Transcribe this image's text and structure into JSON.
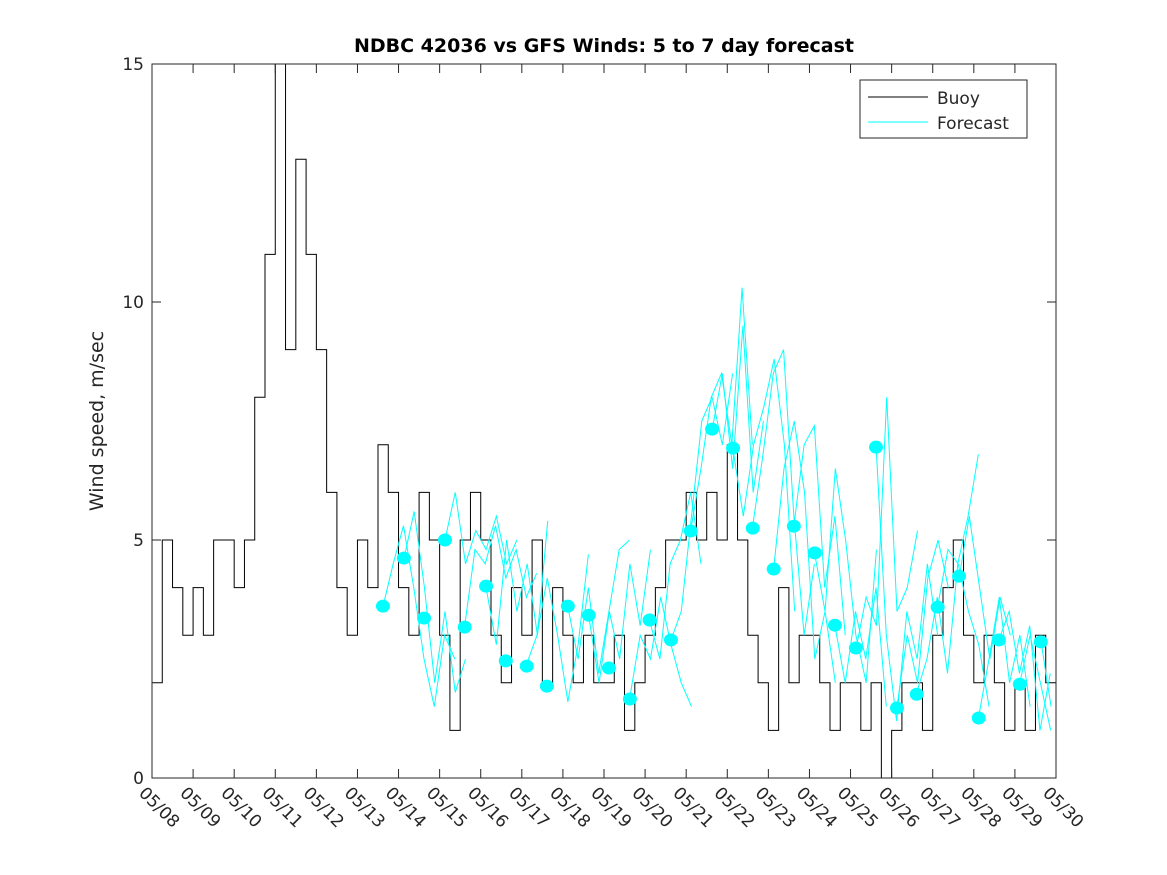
{
  "chart_data": {
    "type": "line",
    "title": "NDBC 42036 vs GFS Winds: 5 to 7 day forecast",
    "xlabel": "",
    "ylabel": "Wind speed, m/sec",
    "xlim_days": [
      0,
      22
    ],
    "ylim": [
      0,
      15
    ],
    "yticks": [
      0,
      5,
      10,
      15
    ],
    "xtick_labels": [
      "05/08",
      "05/09",
      "05/10",
      "05/11",
      "05/12",
      "05/13",
      "05/14",
      "05/15",
      "05/16",
      "05/17",
      "05/18",
      "05/19",
      "05/20",
      "05/21",
      "05/22",
      "05/23",
      "05/24",
      "05/25",
      "05/26",
      "05/27",
      "05/28",
      "05/29",
      "05/30"
    ],
    "legend": {
      "placement": "top-right",
      "entries": [
        {
          "label": "Buoy",
          "color": "#000000"
        },
        {
          "label": "Forecast",
          "color": "#00ffff"
        }
      ]
    },
    "colors": {
      "buoy": "#000000",
      "forecast": "#00ffff"
    },
    "buoy": {
      "step_days": 0.25,
      "values": [
        2,
        5,
        4,
        3,
        4,
        3,
        5,
        5,
        4,
        5,
        8,
        11,
        15,
        9,
        13,
        11,
        9,
        6,
        4,
        3,
        5,
        4,
        7,
        6,
        4,
        3,
        6,
        5,
        3,
        1,
        5,
        6,
        5,
        3,
        2,
        4,
        3,
        5,
        2,
        4,
        3,
        2,
        3,
        2,
        2,
        3,
        1,
        2,
        3,
        4,
        5,
        5,
        6,
        5,
        6,
        5,
        7,
        5,
        3,
        2,
        1,
        4,
        2,
        3,
        3,
        2,
        1,
        2,
        2,
        1,
        2,
        0,
        1,
        2,
        2,
        1,
        3,
        4,
        5,
        3,
        2,
        3,
        2,
        1,
        2,
        1,
        3,
        2
      ]
    },
    "forecast_points": [
      {
        "day": 5.62,
        "value": 3.61
      },
      {
        "day": 6.13,
        "value": 4.62
      },
      {
        "day": 6.62,
        "value": 3.36
      },
      {
        "day": 7.13,
        "value": 5.0
      },
      {
        "day": 7.61,
        "value": 3.17
      },
      {
        "day": 8.13,
        "value": 4.03
      },
      {
        "day": 8.61,
        "value": 2.46
      },
      {
        "day": 9.12,
        "value": 2.35
      },
      {
        "day": 9.61,
        "value": 1.93
      },
      {
        "day": 10.12,
        "value": 3.61
      },
      {
        "day": 10.63,
        "value": 3.42
      },
      {
        "day": 11.12,
        "value": 2.31
      },
      {
        "day": 11.63,
        "value": 1.66
      },
      {
        "day": 12.11,
        "value": 3.32
      },
      {
        "day": 12.63,
        "value": 2.9
      },
      {
        "day": 13.11,
        "value": 5.19
      },
      {
        "day": 13.63,
        "value": 7.33
      },
      {
        "day": 14.14,
        "value": 6.93
      },
      {
        "day": 14.62,
        "value": 5.25
      },
      {
        "day": 15.13,
        "value": 4.39
      },
      {
        "day": 15.62,
        "value": 5.29
      },
      {
        "day": 16.13,
        "value": 4.73
      },
      {
        "day": 16.62,
        "value": 3.21
      },
      {
        "day": 17.13,
        "value": 2.73
      },
      {
        "day": 17.62,
        "value": 6.95
      },
      {
        "day": 18.13,
        "value": 1.47
      },
      {
        "day": 18.61,
        "value": 1.76
      },
      {
        "day": 19.12,
        "value": 3.59
      },
      {
        "day": 19.64,
        "value": 4.24
      },
      {
        "day": 20.12,
        "value": 1.26
      },
      {
        "day": 20.61,
        "value": 2.9
      },
      {
        "day": 21.12,
        "value": 1.97
      },
      {
        "day": 21.63,
        "value": 2.86
      }
    ],
    "forecast_traces": {
      "step_days": 0.25,
      "traces": [
        {
          "start": 5.62,
          "values": [
            3.6,
            4.5,
            5.3,
            4.0,
            2.5,
            1.5,
            3.0,
            2.5
          ]
        },
        {
          "start": 6.13,
          "values": [
            4.6,
            5.6,
            4.0,
            2.0,
            3.5,
            1.8,
            2.5
          ]
        },
        {
          "start": 7.13,
          "values": [
            5.0,
            6.0,
            4.5,
            5.2,
            4.8,
            5.5,
            4.5,
            5.0
          ]
        },
        {
          "start": 7.61,
          "values": [
            3.2,
            4.8,
            4.5,
            5.3,
            4.2,
            4.8,
            3.8,
            4.3
          ]
        },
        {
          "start": 8.13,
          "values": [
            4.0,
            2.8,
            5.0,
            3.5,
            4.5,
            3.0,
            5.4
          ]
        },
        {
          "start": 9.12,
          "values": [
            2.4,
            3.0,
            4.2,
            3.0,
            1.6,
            2.8,
            4.7
          ]
        },
        {
          "start": 10.12,
          "values": [
            3.6,
            2.5,
            4.0,
            2.2,
            3.5,
            4.8,
            5.0
          ]
        },
        {
          "start": 10.63,
          "values": [
            3.4,
            2.0,
            3.5,
            2.5,
            4.5,
            3.2,
            4.8
          ]
        },
        {
          "start": 11.63,
          "values": [
            1.7,
            3.0,
            2.5,
            3.8,
            2.8,
            2.0,
            1.5
          ]
        },
        {
          "start": 12.11,
          "values": [
            3.3,
            2.5,
            4.5,
            5.0,
            6.0,
            4.5
          ]
        },
        {
          "start": 12.63,
          "values": [
            2.9,
            3.5,
            5.5,
            7.5,
            8.0,
            7.0,
            8.5
          ]
        },
        {
          "start": 13.11,
          "values": [
            5.2,
            6.5,
            8.0,
            8.5,
            7.0,
            10.3,
            7.0
          ]
        },
        {
          "start": 13.63,
          "values": [
            7.3,
            8.5,
            6.5,
            9.5,
            6.0,
            7.5
          ]
        },
        {
          "start": 14.14,
          "values": [
            6.9,
            5.5,
            7.0,
            7.8,
            8.8,
            7.0,
            3.5
          ]
        },
        {
          "start": 14.62,
          "values": [
            5.3,
            6.8,
            8.5,
            9.0,
            5.5,
            3.0,
            4.5
          ]
        },
        {
          "start": 15.13,
          "values": [
            4.4,
            6.5,
            7.5,
            6.0,
            2.5,
            3.5,
            2.0
          ]
        },
        {
          "start": 15.62,
          "values": [
            5.3,
            7.0,
            7.4,
            4.0,
            5.5,
            3.0
          ]
        },
        {
          "start": 16.13,
          "values": [
            4.7,
            3.5,
            6.5,
            5.0,
            3.0,
            2.0,
            4.8
          ]
        },
        {
          "start": 16.62,
          "values": [
            3.2,
            2.0,
            3.5,
            2.5,
            4.0,
            1.5
          ]
        },
        {
          "start": 17.13,
          "values": [
            2.7,
            3.8,
            3.2,
            8.0,
            3.5,
            4.0,
            5.2
          ]
        },
        {
          "start": 17.62,
          "values": [
            7.0,
            3.0,
            1.2,
            3.5,
            2.5,
            4.5,
            3.0
          ]
        },
        {
          "start": 18.13,
          "values": [
            1.5,
            3.0,
            2.0,
            4.2,
            5.0,
            4.0
          ]
        },
        {
          "start": 18.61,
          "values": [
            1.8,
            2.5,
            3.8,
            2.2,
            4.5,
            5.5,
            6.8
          ]
        },
        {
          "start": 19.12,
          "values": [
            3.6,
            4.8,
            4.5,
            3.5,
            2.8,
            1.5
          ]
        },
        {
          "start": 19.64,
          "values": [
            4.2,
            5.5,
            4.0,
            2.5,
            3.8,
            3.0
          ]
        },
        {
          "start": 20.12,
          "values": [
            1.3,
            2.5,
            3.8,
            2.0,
            3.0,
            1.5
          ]
        },
        {
          "start": 20.61,
          "values": [
            2.9,
            3.5,
            2.2,
            3.2,
            1.0,
            2.2
          ]
        },
        {
          "start": 21.12,
          "values": [
            2.0,
            3.0,
            2.0,
            1.0,
            2.5
          ]
        },
        {
          "start": 21.63,
          "values": [
            2.9,
            1.5,
            2.8
          ]
        }
      ]
    }
  }
}
